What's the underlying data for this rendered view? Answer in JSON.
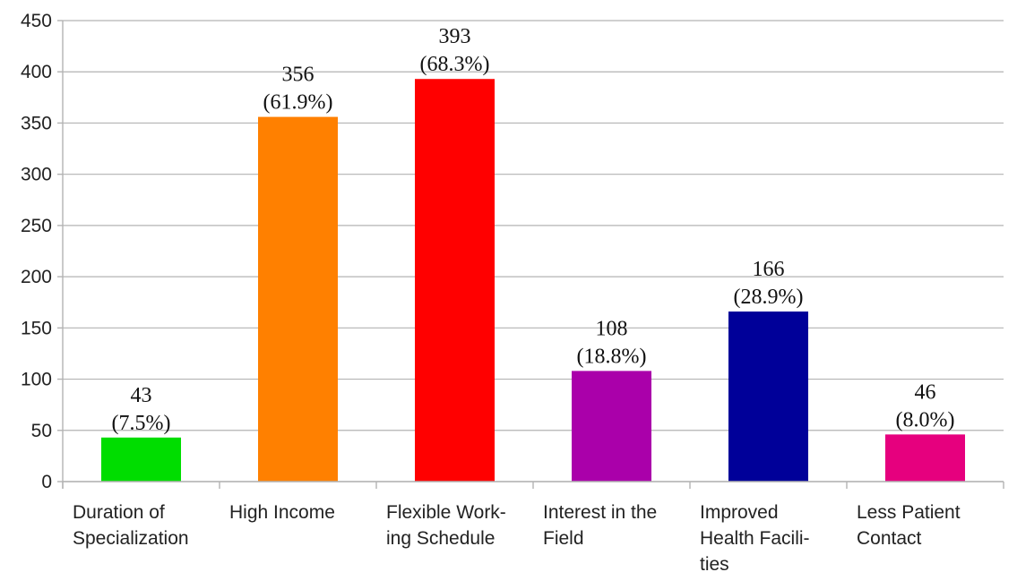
{
  "chart_data": {
    "type": "bar",
    "categories": [
      [
        "Duration of",
        "Specialization"
      ],
      [
        "High Income"
      ],
      [
        "Flexible Work-",
        "ing Schedule"
      ],
      [
        "Interest in the",
        "Field"
      ],
      [
        "Improved",
        "Health Facili-",
        "ties"
      ],
      [
        "Less Patient",
        "Contact"
      ]
    ],
    "values": [
      43,
      356,
      393,
      108,
      166,
      46
    ],
    "data_labels": [
      [
        "43",
        "(7.5%)"
      ],
      [
        "356",
        "(61.9%)"
      ],
      [
        "393",
        "(68.3%)"
      ],
      [
        "108",
        "(18.8%)"
      ],
      [
        "166",
        "(28.9%)"
      ],
      [
        "46",
        "(8.0%)"
      ]
    ],
    "colors": [
      "#00dd00",
      "#ff8000",
      "#ff0000",
      "#aa00aa",
      "#000099",
      "#e6007e"
    ],
    "y_ticks": [
      "0",
      "50",
      "100",
      "150",
      "200",
      "250",
      "300",
      "350",
      "400",
      "450"
    ],
    "ylim": [
      0,
      450
    ],
    "grid": true,
    "title": "",
    "xlabel": "",
    "ylabel": ""
  }
}
